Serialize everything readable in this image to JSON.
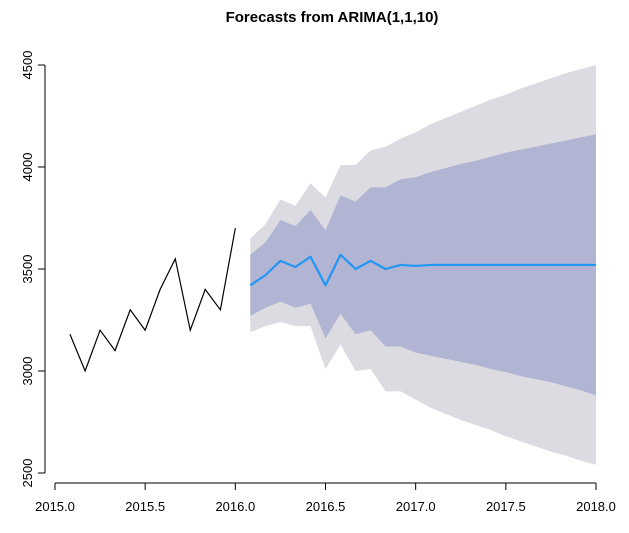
{
  "chart_data": {
    "type": "line",
    "title": "Forecasts from ARIMA(1,1,10)",
    "xlabel": "",
    "ylabel": "",
    "xlim": [
      2015.0,
      2018.0
    ],
    "ylim": [
      2500,
      4500
    ],
    "x_ticks": [
      2015.0,
      2015.5,
      2016.0,
      2016.5,
      2017.0,
      2017.5,
      2018.0
    ],
    "x_tick_labels": [
      "2015.0",
      "2015.5",
      "2016.0",
      "2016.5",
      "2017.0",
      "2017.5",
      "2018.0"
    ],
    "y_ticks": [
      2500,
      3000,
      3500,
      4000,
      4500
    ],
    "y_tick_labels": [
      "2500",
      "3000",
      "3500",
      "4000",
      "4500"
    ],
    "grid": false,
    "legend": "none",
    "colors": {
      "observed": "#000000",
      "forecast": "#2196F3",
      "band_95": "#DBDBE1",
      "band_80": "#B1B4D3",
      "axis": "#000000"
    },
    "series": [
      {
        "x": [
          2015.083,
          2015.167,
          2015.25,
          2015.333,
          2015.417,
          2015.5,
          2015.583,
          2015.667,
          2015.75,
          2015.833,
          2015.917,
          2016.0
        ],
        "values": [
          3180,
          3000,
          3200,
          3100,
          3300,
          3200,
          3400,
          3550,
          3200,
          3400,
          3300,
          3700
        ]
      },
      {
        "x": [
          2016.083,
          2016.167,
          2016.25,
          2016.333,
          2016.417,
          2016.5,
          2016.583,
          2016.667,
          2016.75,
          2016.833,
          2016.917,
          2017.0,
          2017.083,
          2017.167,
          2017.25,
          2017.333,
          2017.417,
          2017.5,
          2017.583,
          2017.667,
          2017.75,
          2017.833,
          2017.917,
          2018.0
        ],
        "values": [
          3420,
          3470,
          3540,
          3510,
          3560,
          3420,
          3570,
          3500,
          3540,
          3500,
          3520,
          3515,
          3520,
          3520,
          3520,
          3520,
          3520,
          3520,
          3520,
          3520,
          3520,
          3520,
          3520,
          3520
        ],
        "lo80": [
          3270,
          3310,
          3340,
          3310,
          3330,
          3160,
          3280,
          3180,
          3200,
          3120,
          3120,
          3090,
          3075,
          3060,
          3045,
          3030,
          3010,
          2995,
          2975,
          2960,
          2945,
          2925,
          2905,
          2880
        ],
        "hi80": [
          3570,
          3630,
          3740,
          3710,
          3790,
          3690,
          3860,
          3830,
          3900,
          3900,
          3940,
          3950,
          3975,
          3995,
          4015,
          4030,
          4050,
          4070,
          4085,
          4100,
          4115,
          4130,
          4145,
          4160
        ],
        "lo95": [
          3190,
          3220,
          3240,
          3220,
          3220,
          3010,
          3130,
          3000,
          3010,
          2900,
          2900,
          2860,
          2820,
          2790,
          2760,
          2735,
          2710,
          2680,
          2655,
          2630,
          2605,
          2585,
          2560,
          2540
        ],
        "hi95": [
          3650,
          3720,
          3840,
          3810,
          3920,
          3850,
          4010,
          4010,
          4080,
          4100,
          4140,
          4170,
          4210,
          4240,
          4270,
          4300,
          4330,
          4355,
          4385,
          4410,
          4435,
          4460,
          4480,
          4500
        ]
      }
    ]
  }
}
